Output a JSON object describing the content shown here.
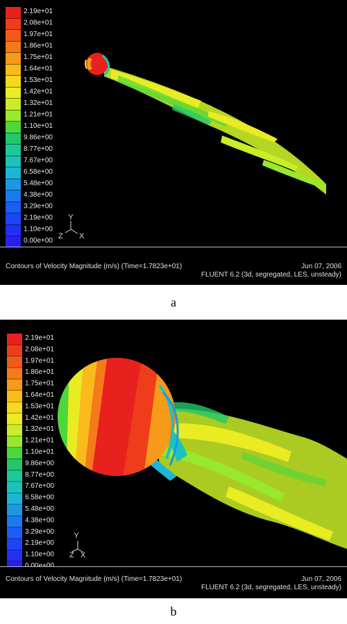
{
  "legend": {
    "levels": [
      "2.19e+01",
      "2.08e+01",
      "1.97e+01",
      "1.86e+01",
      "1.75e+01",
      "1.64e+01",
      "1.53e+01",
      "1.42e+01",
      "1.32e+01",
      "1.21e+01",
      "1.10e+01",
      "9.86e+00",
      "8.77e+00",
      "7.67e+00",
      "6.58e+00",
      "5.48e+00",
      "4.38e+00",
      "3.29e+00",
      "2.19e+00",
      "1.10e+00",
      "0.00e+00"
    ],
    "colors": [
      "#e8201e",
      "#ef3d1c",
      "#f25a1a",
      "#f47a1a",
      "#f79a1a",
      "#f9bb1c",
      "#f6d81e",
      "#e9ec22",
      "#c9ee28",
      "#98e82e",
      "#4cd83a",
      "#22c86a",
      "#1ec896",
      "#1ec2bc",
      "#1eb4d8",
      "#1a98e4",
      "#1a7aee",
      "#1a5ef4",
      "#1a46f6",
      "#2330f4",
      "#2a1fe8"
    ]
  },
  "axes": {
    "x": "X",
    "y": "Y",
    "z": "Z"
  },
  "panels": [
    {
      "id": "a",
      "caption_left": "Contours of Velocity Magnitude (m/s)  (Time=1.7823e+01)",
      "caption_date": "Jun 07, 2006",
      "caption_solver": "FLUENT 6.2 (3d, segregated, LES, unsteady)",
      "label": "a"
    },
    {
      "id": "b",
      "caption_left": "Contours of Velocity Magnitude (m/s)  (Time=1.7823e+01)",
      "caption_date": "Jun 07, 2006",
      "caption_solver": "FLUENT 6.2 (3d, segregated, LES, unsteady)",
      "label": "b"
    }
  ]
}
